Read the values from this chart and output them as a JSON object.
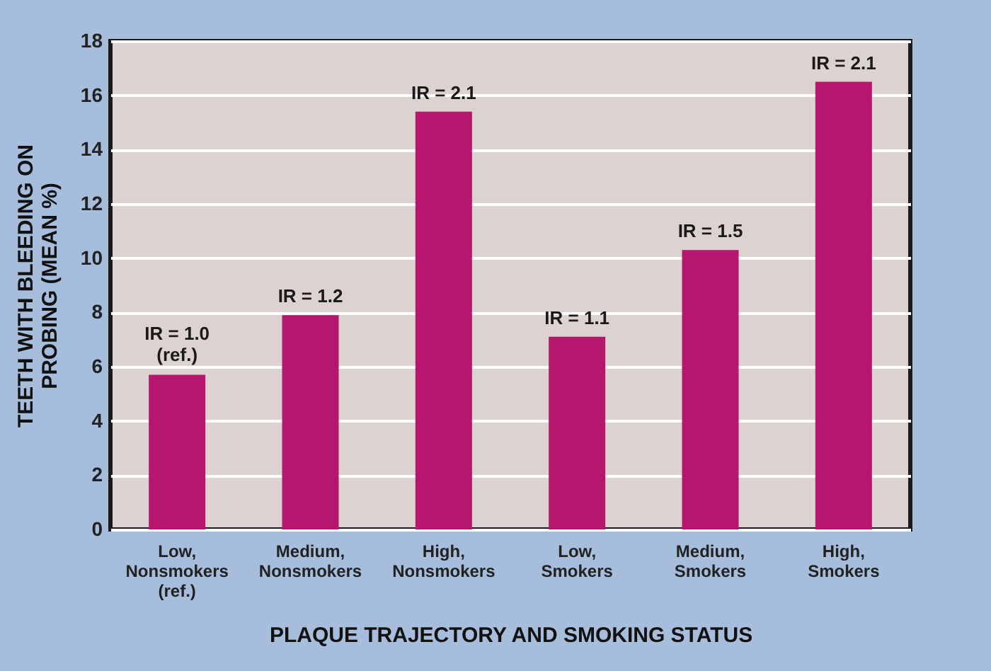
{
  "chart_data": {
    "type": "bar",
    "xlabel": "PLAQUE TRAJECTORY AND SMOKING STATUS",
    "ylabel": "TEETH WITH BLEEDING ON PROBING (MEAN %)",
    "categories": [
      "Low, Nonsmokers (ref.)",
      "Medium, Nonsmokers",
      "High, Nonsmokers",
      "Low, Smokers",
      "Medium, Smokers",
      "High, Smokers"
    ],
    "values": [
      5.7,
      7.9,
      15.4,
      7.1,
      10.3,
      16.5
    ],
    "color": "#b5176f",
    "ylim": [
      0,
      18
    ],
    "yticks": [
      0,
      2,
      4,
      6,
      8,
      10,
      12,
      14,
      16,
      18
    ],
    "grid": "y",
    "annotations": [
      {
        "text": "IR = 1.0 (ref.)",
        "x": "Low, Nonsmokers (ref.)",
        "y": 5.7
      },
      {
        "text": "IR = 1.2",
        "x": "Medium, Nonsmokers",
        "y": 7.9
      },
      {
        "text": "IR = 2.1",
        "x": "High, Nonsmokers",
        "y": 15.4
      },
      {
        "text": "IR = 1.1",
        "x": "Low, Smokers",
        "y": 7.1
      },
      {
        "text": "IR = 1.5",
        "x": "Medium, Smokers",
        "y": 10.3
      },
      {
        "text": "IR = 2.1",
        "x": "High, Smokers",
        "y": 16.5
      }
    ]
  }
}
